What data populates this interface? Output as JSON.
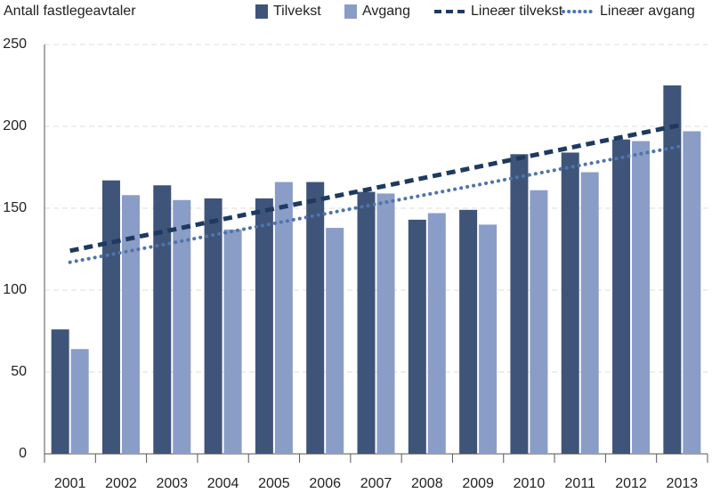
{
  "chart_data": {
    "type": "bar",
    "title": "Antall fastlegeavtaler",
    "categories": [
      "2001",
      "2002",
      "2003",
      "2004",
      "2005",
      "2006",
      "2007",
      "2008",
      "2009",
      "2010",
      "2011",
      "2012",
      "2013"
    ],
    "series": [
      {
        "name": "Tilvekst",
        "type": "bar",
        "color": "#3f5479",
        "values": [
          76,
          167,
          164,
          156,
          156,
          166,
          160,
          143,
          149,
          183,
          184,
          192,
          225
        ]
      },
      {
        "name": "Avgang",
        "type": "bar",
        "color": "#8a9dc7",
        "values": [
          64,
          158,
          155,
          137,
          166,
          138,
          159,
          147,
          140,
          161,
          172,
          191,
          197
        ]
      },
      {
        "name": "Lineær tilvekst",
        "type": "line",
        "style": "dashed",
        "color": "#1f3a60",
        "values": [
          124,
          130.4,
          136.8,
          143.3,
          149.7,
          156.1,
          162.5,
          168.9,
          175.3,
          181.8,
          188.2,
          194.6,
          201
        ]
      },
      {
        "name": "Lineær avgang",
        "type": "line",
        "style": "dotted",
        "color": "#4f74ab",
        "values": [
          117,
          122.9,
          128.8,
          134.8,
          140.7,
          146.6,
          152.5,
          158.4,
          164.3,
          170.3,
          176.2,
          182.1,
          188
        ]
      }
    ],
    "ylim": [
      0,
      250
    ],
    "yticks": [
      0,
      50,
      100,
      150,
      200,
      250
    ],
    "grid": true
  }
}
